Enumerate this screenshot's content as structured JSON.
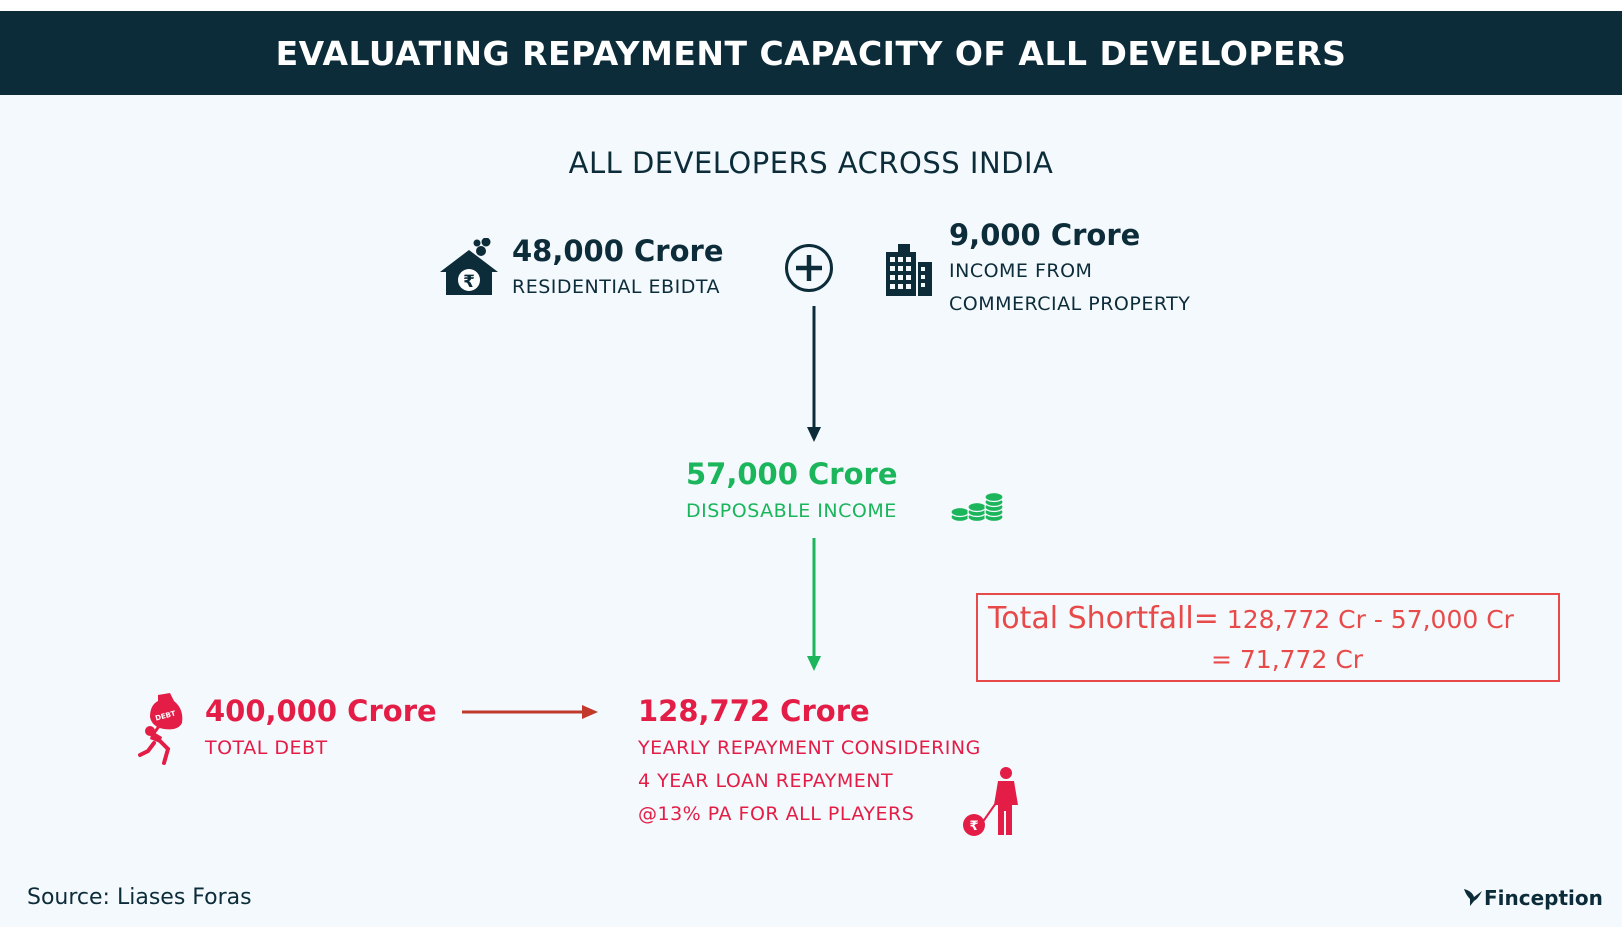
{
  "header": {
    "title": "EVALUATING REPAYMENT CAPACITY OF ALL DEVELOPERS"
  },
  "subtitle": "ALL DEVELOPERS ACROSS INDIA",
  "residential": {
    "value": "48,000 Crore",
    "label": "RESIDENTIAL EBIDTA"
  },
  "commercial": {
    "value": "9,000 Crore",
    "label_line1": "INCOME FROM",
    "label_line2": "COMMERCIAL PROPERTY"
  },
  "disposable": {
    "value": "57,000 Crore",
    "label": "DISPOSABLE INCOME"
  },
  "debt": {
    "value": "400,000 Crore",
    "label": "TOTAL DEBT"
  },
  "repayment": {
    "value": "128,772 Crore",
    "line1": "YEARLY REPAYMENT CONSIDERING",
    "line2": "4 YEAR LOAN REPAYMENT",
    "line3": "@13% PA FOR ALL PLAYERS"
  },
  "shortfall": {
    "label": "Total Shortfall=",
    "expression": " 128,772 Cr - 57,000 Cr",
    "result": "=  71,772 Cr"
  },
  "footer": {
    "source": "Source: Liases Foras",
    "brand": "Finception"
  },
  "icons": {
    "residential": "house-rupee-icon",
    "plus": "plus-circle-icon",
    "commercial": "office-building-icon",
    "coins": "coin-stack-icon",
    "debt": "person-carrying-debt-icon",
    "repayment": "person-dragging-rupee-ball-icon",
    "brand": "bird-logo-icon"
  },
  "colors": {
    "navy": "#0d2c3a",
    "green": "#1bb55c",
    "red": "#e41d47",
    "shortfall": "#e84a4a",
    "background": "#f3f9fc"
  }
}
